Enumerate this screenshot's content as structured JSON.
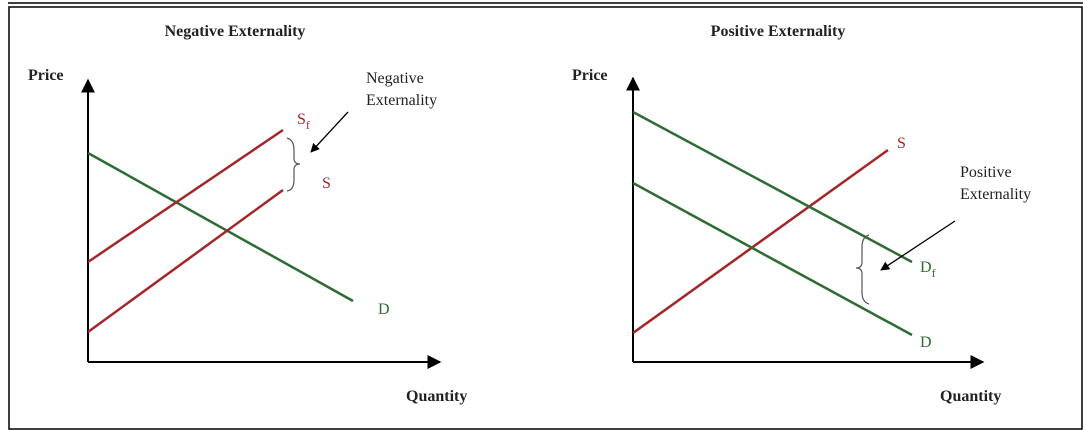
{
  "panels": [
    {
      "title": "Negative Externality",
      "y_label": "Price",
      "x_label": "Quantity",
      "annotation": [
        "Negative",
        "Externality"
      ],
      "curves": [
        {
          "label": "S",
          "subscript": "f"
        },
        {
          "label": "S"
        },
        {
          "label": "D"
        }
      ]
    },
    {
      "title": "Positive Externality",
      "y_label": "Price",
      "x_label": "Quantity",
      "annotation": [
        "Positive",
        "Externality"
      ],
      "curves": [
        {
          "label": "S"
        },
        {
          "label": "D",
          "subscript": "f"
        },
        {
          "label": "D"
        }
      ]
    }
  ]
}
